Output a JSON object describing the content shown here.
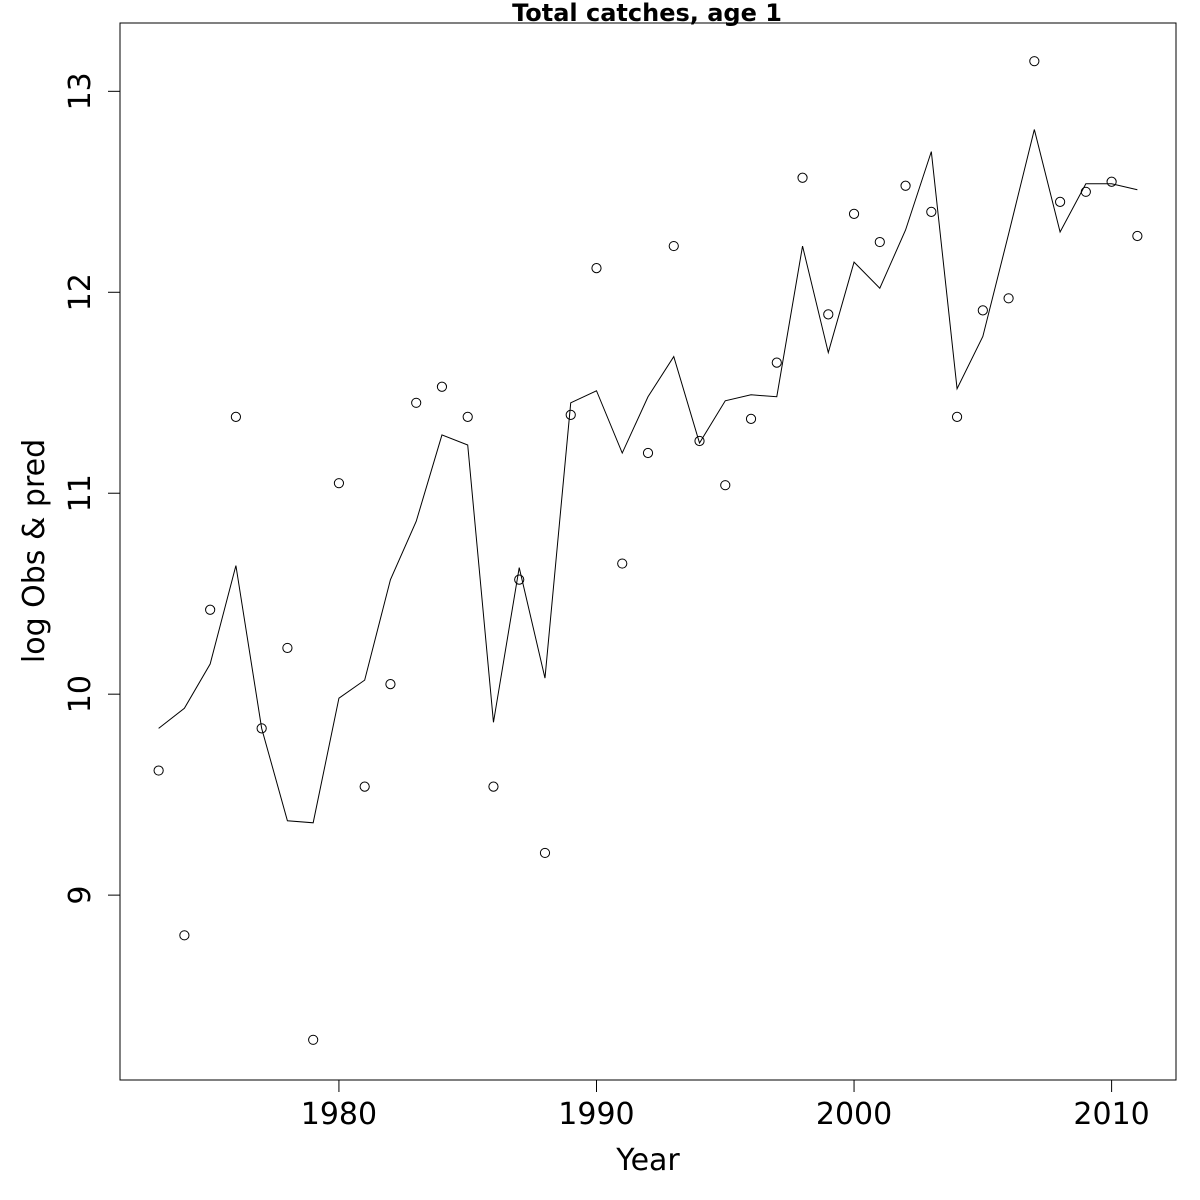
{
  "chart_data": {
    "type": "scatter",
    "title": "Total catches, age 1",
    "xlabel": "Year",
    "ylabel": "log Obs & pred",
    "xlim": [
      1971.5,
      2012.5
    ],
    "ylim": [
      8.08,
      13.34
    ],
    "x_ticks": [
      1980,
      1990,
      2000,
      2010
    ],
    "y_ticks": [
      9,
      10,
      11,
      12,
      13
    ],
    "grid": false,
    "legend": "none",
    "series": [
      {
        "style": "points",
        "marker": "open-circle",
        "x": [
          1973,
          1974,
          1975,
          1976,
          1977,
          1978,
          1979,
          1980,
          1981,
          1982,
          1983,
          1984,
          1985,
          1986,
          1987,
          1988,
          1989,
          1990,
          1991,
          1992,
          1993,
          1994,
          1995,
          1996,
          1997,
          1998,
          1999,
          2000,
          2001,
          2002,
          2003,
          2004,
          2005,
          2006,
          2007,
          2008,
          2009,
          2010,
          2011
        ],
        "y": [
          9.62,
          8.8,
          10.42,
          11.38,
          9.83,
          10.23,
          8.28,
          11.05,
          9.54,
          10.05,
          11.45,
          11.53,
          11.38,
          9.54,
          10.57,
          9.21,
          11.39,
          12.12,
          10.65,
          11.2,
          12.23,
          11.26,
          11.04,
          11.37,
          11.65,
          12.57,
          11.89,
          12.39,
          12.25,
          12.53,
          12.4,
          11.38,
          11.91,
          11.97,
          13.15,
          12.45,
          12.5,
          12.55,
          12.28
        ]
      },
      {
        "style": "line",
        "x": [
          1973,
          1974,
          1975,
          1976,
          1977,
          1978,
          1979,
          1980,
          1981,
          1982,
          1983,
          1984,
          1985,
          1986,
          1987,
          1988,
          1989,
          1990,
          1991,
          1992,
          1993,
          1994,
          1995,
          1996,
          1997,
          1998,
          1999,
          2000,
          2001,
          2002,
          2003,
          2004,
          2005,
          2006,
          2007,
          2008,
          2009,
          2010,
          2011
        ],
        "y": [
          9.83,
          9.93,
          10.15,
          10.64,
          9.83,
          9.37,
          9.36,
          9.98,
          10.07,
          10.57,
          10.86,
          11.29,
          11.24,
          9.86,
          10.63,
          10.08,
          11.45,
          11.51,
          11.2,
          11.48,
          11.68,
          11.25,
          11.46,
          11.49,
          11.48,
          12.23,
          11.7,
          12.15,
          12.02,
          12.31,
          12.7,
          11.52,
          11.78,
          12.29,
          12.81,
          12.3,
          12.54,
          12.54,
          12.51
        ]
      }
    ]
  }
}
